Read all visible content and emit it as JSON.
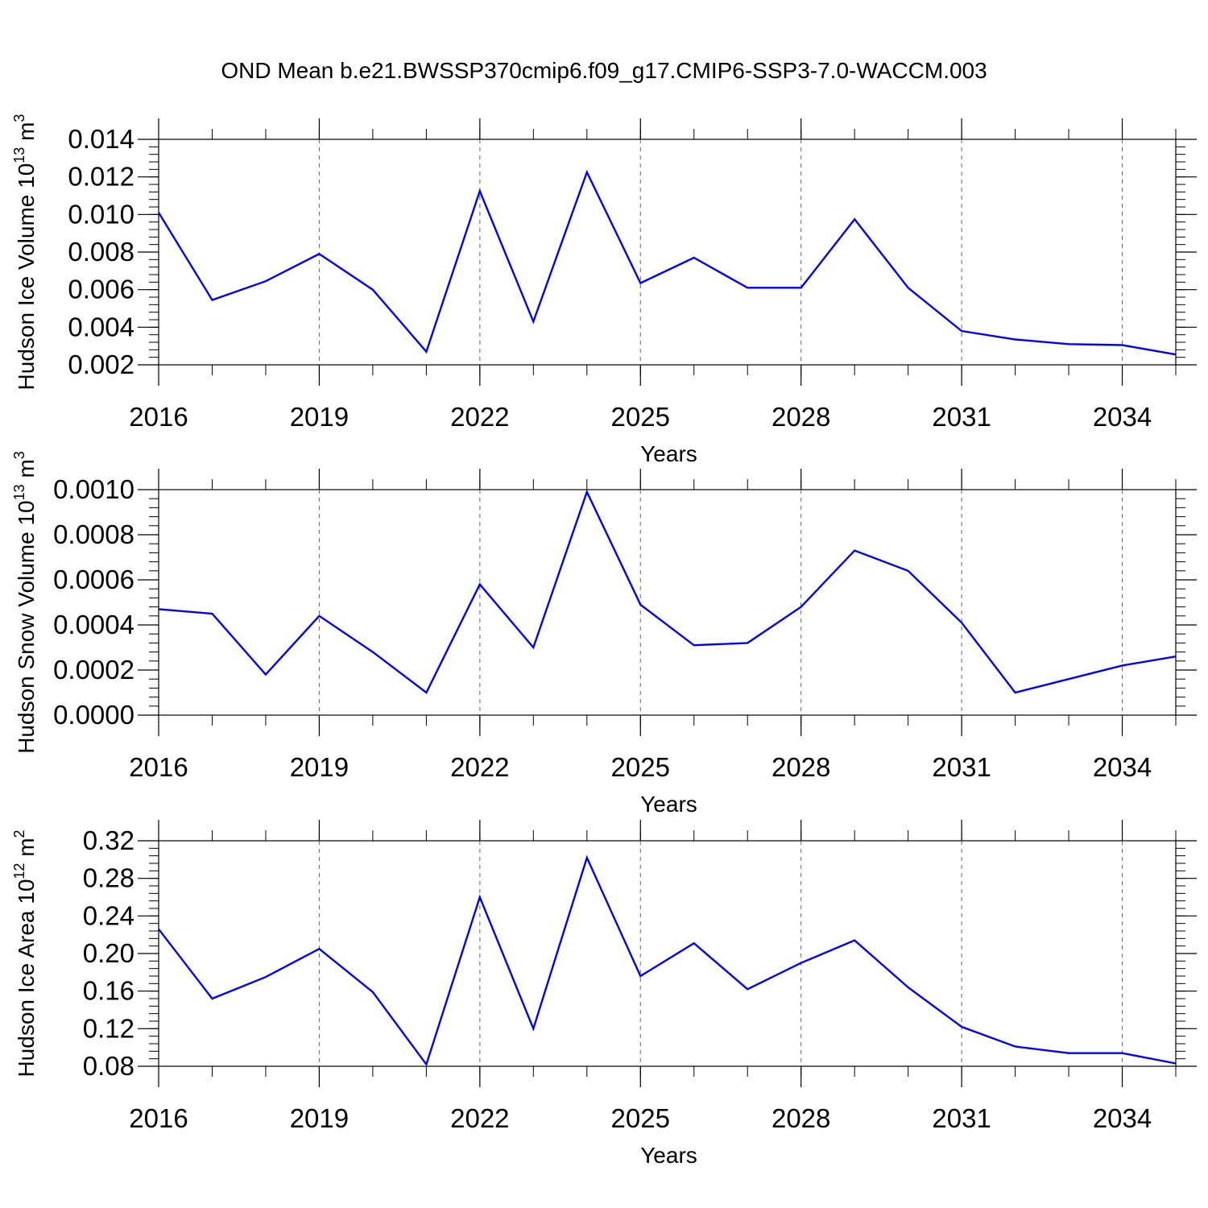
{
  "title": "OND Mean b.e21.BWSSP370cmip6.f09_g17.CMIP6-SSP3-7.0-WACCM.003",
  "line_color": "#0000ff",
  "chart_data": [
    {
      "type": "line",
      "title": "",
      "xlabel": "Years",
      "ylabel_main": "Hudson Ice Volume 10",
      "ylabel_sup": "13",
      "ylabel_unit": " m",
      "ylabel_unit_sup": "3",
      "xlim": [
        2016,
        2035
      ],
      "ylim": [
        0.002,
        0.014
      ],
      "x_ticks": [
        2016,
        2019,
        2022,
        2025,
        2028,
        2031,
        2034
      ],
      "y_ticks": [
        0.002,
        0.004,
        0.006,
        0.008,
        0.01,
        0.012,
        0.014
      ],
      "y_tick_labels": [
        "0.002",
        "0.004",
        "0.006",
        "0.008",
        "0.010",
        "0.012",
        "0.014"
      ],
      "x": [
        2016,
        2017,
        2018,
        2019,
        2020,
        2021,
        2022,
        2023,
        2024,
        2025,
        2026,
        2027,
        2028,
        2029,
        2030,
        2031,
        2032,
        2033,
        2034,
        2035
      ],
      "y": [
        0.0101,
        0.00545,
        0.00645,
        0.0079,
        0.006,
        0.0027,
        0.01125,
        0.0043,
        0.01225,
        0.00635,
        0.0077,
        0.0061,
        0.0061,
        0.00975,
        0.0061,
        0.0038,
        0.00335,
        0.0031,
        0.00305,
        0.00255
      ]
    },
    {
      "type": "line",
      "title": "",
      "xlabel": "Years",
      "ylabel_main": "Hudson Snow Volume 10",
      "ylabel_sup": "13",
      "ylabel_unit": " m",
      "ylabel_unit_sup": "3",
      "xlim": [
        2016,
        2035
      ],
      "ylim": [
        0.0,
        0.001
      ],
      "x_ticks": [
        2016,
        2019,
        2022,
        2025,
        2028,
        2031,
        2034
      ],
      "y_ticks": [
        0.0,
        0.0002,
        0.0004,
        0.0006,
        0.0008,
        0.001
      ],
      "y_tick_labels": [
        "0.0000",
        "0.0002",
        "0.0004",
        "0.0006",
        "0.0008",
        "0.0010"
      ],
      "x": [
        2016,
        2017,
        2018,
        2019,
        2020,
        2021,
        2022,
        2023,
        2024,
        2025,
        2026,
        2027,
        2028,
        2029,
        2030,
        2031,
        2032,
        2033,
        2034,
        2035
      ],
      "y": [
        0.00047,
        0.00045,
        0.00018,
        0.00044,
        0.00028,
        0.0001,
        0.00058,
        0.0003,
        0.00099,
        0.00049,
        0.00031,
        0.00032,
        0.00048,
        0.00073,
        0.00064,
        0.00041,
        0.0001,
        0.00016,
        0.00022,
        0.00026
      ]
    },
    {
      "type": "line",
      "title": "",
      "xlabel": "Years",
      "ylabel_main": "Hudson Ice Area 10",
      "ylabel_sup": "12",
      "ylabel_unit": " m",
      "ylabel_unit_sup": "2",
      "xlim": [
        2016,
        2035
      ],
      "ylim": [
        0.08,
        0.32
      ],
      "x_ticks": [
        2016,
        2019,
        2022,
        2025,
        2028,
        2031,
        2034
      ],
      "y_ticks": [
        0.08,
        0.12,
        0.16,
        0.2,
        0.24,
        0.28,
        0.32
      ],
      "y_tick_labels": [
        "0.08",
        "0.12",
        "0.16",
        "0.20",
        "0.24",
        "0.28",
        "0.32"
      ],
      "x": [
        2016,
        2017,
        2018,
        2019,
        2020,
        2021,
        2022,
        2023,
        2024,
        2025,
        2026,
        2027,
        2028,
        2029,
        2030,
        2031,
        2032,
        2033,
        2034,
        2035
      ],
      "y": [
        0.226,
        0.152,
        0.175,
        0.205,
        0.159,
        0.082,
        0.26,
        0.12,
        0.302,
        0.176,
        0.211,
        0.162,
        0.19,
        0.214,
        0.164,
        0.122,
        0.101,
        0.094,
        0.094,
        0.083
      ]
    }
  ]
}
